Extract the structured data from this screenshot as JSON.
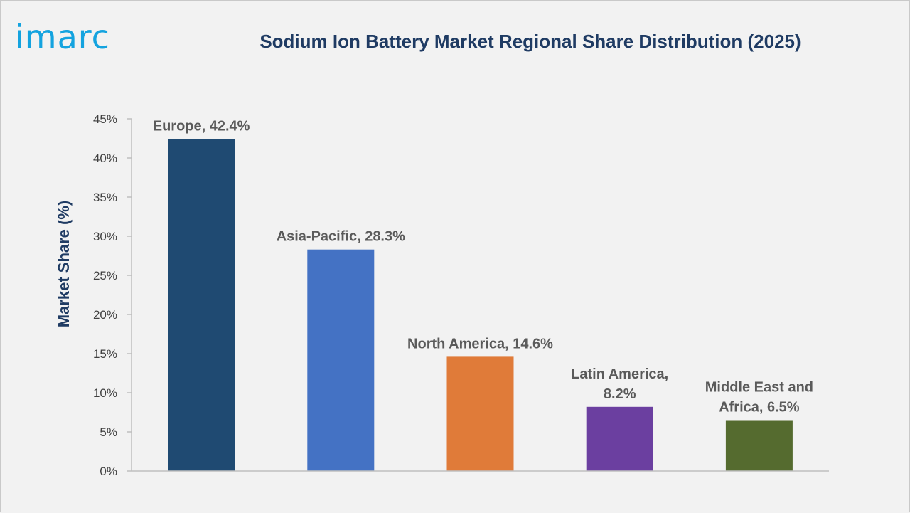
{
  "brand": {
    "logo_text": "imarc"
  },
  "chart_data": {
    "type": "bar",
    "title": "Sodium Ion Battery Market Regional Share Distribution (2025)",
    "ylabel": "Market Share (%)",
    "xlabel": "",
    "ylim": [
      0,
      45
    ],
    "yticks": [
      "0%",
      "5%",
      "10%",
      "15%",
      "20%",
      "25%",
      "30%",
      "35%",
      "40%",
      "45%"
    ],
    "categories": [
      "Europe",
      "Asia-Pacific",
      "North America",
      "Latin America",
      "Middle East and Africa"
    ],
    "values": [
      42.4,
      28.3,
      14.6,
      8.2,
      6.5
    ],
    "data_labels": [
      [
        "Europe, 42.4%"
      ],
      [
        "Asia-Pacific, 28.3%"
      ],
      [
        "North America, 14.6%"
      ],
      [
        "Latin America,",
        "8.2%"
      ],
      [
        "Middle East and",
        "Africa, 6.5%"
      ]
    ],
    "colors": [
      "#1f4a72",
      "#4472c4",
      "#e07b39",
      "#6b3fa0",
      "#556b2f"
    ],
    "grid": false,
    "legend": "none"
  }
}
